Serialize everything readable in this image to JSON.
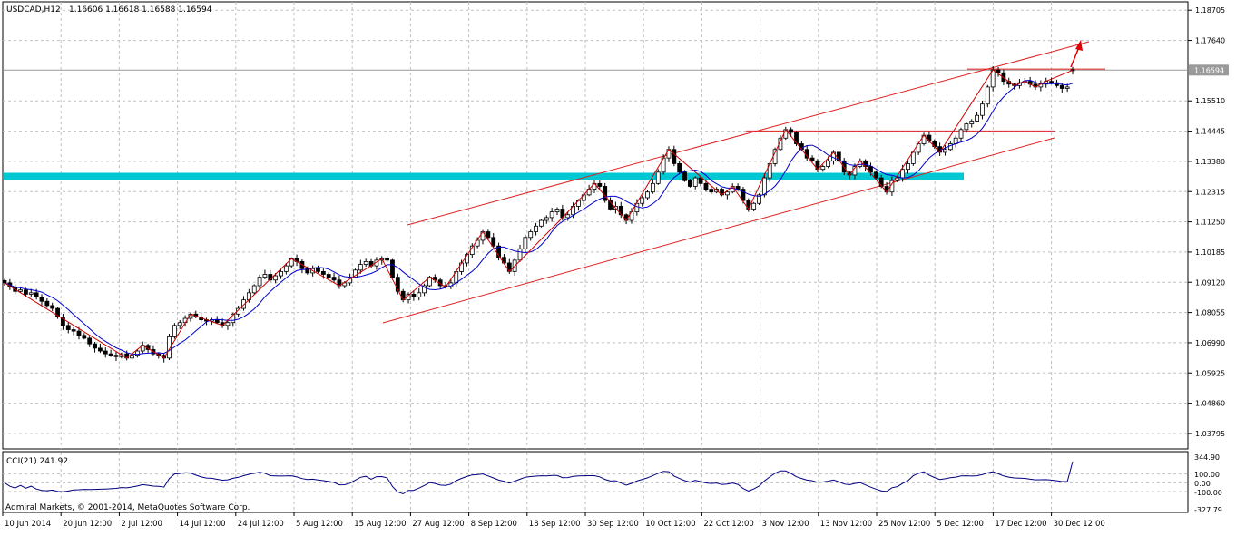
{
  "header": {
    "symbol_label": "USDCAD,H12",
    "ohlc_text": "1.16606 1.16618 1.16588 1.16594"
  },
  "cci_panel": {
    "label": "CCI(21) 241.92",
    "axis_labels": [
      "344.90",
      "100.00",
      "0.00",
      "-100.00",
      "-327.79"
    ]
  },
  "footer": {
    "copyright": "Admiral Markets, © 2001-2014, MetaQuotes Software Corp."
  },
  "colors": {
    "background": "#ffffff",
    "grid": "#c0c0c0",
    "candle_body": "#000000",
    "moving_average": "#0000cc",
    "zigzag": "#cc0000",
    "zigzag_light": "#5aa0e6",
    "channel_lines": "#e02020",
    "support_band": "#00c8d2",
    "cci_line": "#000080",
    "arrow": "#e00000",
    "current_price_line": "#9a9a9a",
    "price_badge": "#9a9a9a"
  },
  "chart_data": [
    {
      "type": "candlestick",
      "title": "USDCAD,H12",
      "instrument": "USDCAD",
      "timeframe": "H12",
      "last_bar": {
        "open": 1.16606,
        "high": 1.16618,
        "low": 1.16588,
        "close": 1.16594
      },
      "current_price_label": "1.16594",
      "y_ticks": [
        "1.18705",
        "1.17640",
        "1.16594",
        "1.15510",
        "1.14445",
        "1.13380",
        "1.12315",
        "1.11250",
        "1.10185",
        "1.09120",
        "1.08055",
        "1.06990",
        "1.05925",
        "1.04860",
        "1.03795"
      ],
      "x_ticks": [
        "10 Jun 2014",
        "20 Jun 12:00",
        "2 Jul 12:00",
        "14 Jul 12:00",
        "24 Jul 12:00",
        "5 Aug 12:00",
        "15 Aug 12:00",
        "27 Aug 12:00",
        "8 Sep 12:00",
        "18 Sep 12:00",
        "30 Sep 12:00",
        "10 Oct 12:00",
        "22 Oct 12:00",
        "3 Nov 12:00",
        "13 Nov 12:00",
        "25 Nov 12:00",
        "5 Dec 12:00",
        "17 Dec 12:00",
        "30 Dec 12:00"
      ],
      "ylim": [
        1.0325,
        1.19
      ],
      "grid": true,
      "closes": [
        1.091,
        1.0895,
        1.088,
        1.0885,
        1.087,
        1.0875,
        1.086,
        1.0845,
        1.083,
        1.082,
        1.079,
        1.076,
        1.0745,
        1.074,
        1.0725,
        1.0715,
        1.0695,
        1.068,
        1.067,
        1.066,
        1.0655,
        1.065,
        1.066,
        1.0645,
        1.0655,
        1.067,
        1.069,
        1.0675,
        1.066,
        1.0655,
        1.0645,
        1.072,
        1.076,
        1.077,
        1.0785,
        1.08,
        1.079,
        1.078,
        1.0775,
        1.078,
        1.077,
        1.076,
        1.077,
        1.08,
        1.082,
        1.085,
        1.0875,
        1.09,
        1.093,
        1.094,
        1.092,
        1.0935,
        1.095,
        1.097,
        1.0995,
        1.0985,
        1.096,
        1.0945,
        1.096,
        1.095,
        1.094,
        1.093,
        1.092,
        1.09,
        1.091,
        1.093,
        1.0955,
        1.0975,
        1.0985,
        1.097,
        1.099,
        1.0995,
        1.099,
        1.093,
        1.088,
        1.085,
        1.087,
        1.086,
        1.0875,
        1.09,
        1.093,
        1.092,
        1.09,
        1.0895,
        1.091,
        1.095,
        1.098,
        1.101,
        1.104,
        1.106,
        1.109,
        1.107,
        1.104,
        1.1,
        1.098,
        1.095,
        1.099,
        1.103,
        1.107,
        1.109,
        1.111,
        1.113,
        1.114,
        1.116,
        1.117,
        1.114,
        1.115,
        1.118,
        1.12,
        1.122,
        1.124,
        1.126,
        1.125,
        1.12,
        1.117,
        1.118,
        1.115,
        1.113,
        1.116,
        1.119,
        1.121,
        1.123,
        1.126,
        1.13,
        1.135,
        1.138,
        1.133,
        1.13,
        1.127,
        1.125,
        1.128,
        1.126,
        1.124,
        1.123,
        1.124,
        1.122,
        1.123,
        1.125,
        1.124,
        1.12,
        1.117,
        1.119,
        1.122,
        1.128,
        1.133,
        1.138,
        1.142,
        1.145,
        1.144,
        1.14,
        1.138,
        1.135,
        1.134,
        1.131,
        1.132,
        1.134,
        1.137,
        1.134,
        1.13,
        1.129,
        1.132,
        1.134,
        1.132,
        1.13,
        1.128,
        1.125,
        1.123,
        1.127,
        1.128,
        1.131,
        1.133,
        1.137,
        1.14,
        1.143,
        1.141,
        1.139,
        1.137,
        1.138,
        1.14,
        1.142,
        1.145,
        1.147,
        1.148,
        1.15,
        1.154,
        1.16,
        1.166,
        1.165,
        1.162,
        1.161,
        1.1605,
        1.1615,
        1.162,
        1.161,
        1.16,
        1.161,
        1.162,
        1.1615,
        1.1605,
        1.1595,
        1.16,
        1.1659
      ],
      "moving_average_type": "moving average (blue)",
      "overlays": {
        "support_band_price": 1.1285,
        "resistance_line_price": 1.1445,
        "top_line_price": 1.1663
      },
      "annotation": "red arrow pointing up-right"
    },
    {
      "type": "line",
      "title": "CCI(21) 241.92",
      "series": [
        {
          "name": "CCI(21)",
          "last_value": 241.92
        }
      ],
      "y_ticks": [
        "344.90",
        "100.00",
        "0.00",
        "-100.00",
        "-327.79"
      ],
      "ylim": [
        -327.79,
        344.9
      ]
    }
  ]
}
